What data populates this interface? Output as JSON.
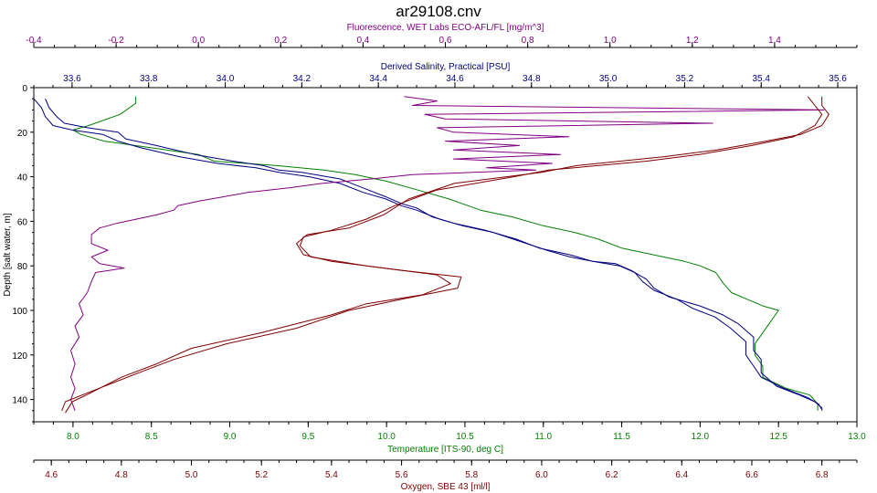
{
  "title": "ar29108.cnv",
  "chart_data": {
    "type": "line",
    "title": "ar29108.cnv",
    "grid": false,
    "legend": "none",
    "y_axis": {
      "label": "Depth [salt water, m]",
      "range": [
        0,
        150
      ],
      "ticks": [
        0,
        20,
        40,
        60,
        80,
        100,
        120,
        140
      ],
      "tick_labels": [
        "0",
        "20",
        "40",
        "60",
        "80",
        "100",
        "120",
        "140"
      ],
      "reversed": true
    },
    "axes": {
      "fluorescence": {
        "label": "Fluorescence, WET Labs ECO-AFL/FL [mg/m^3]",
        "color": "#800080",
        "position": "top",
        "range": [
          -0.4,
          1.6
        ],
        "ticks": [
          -0.4,
          -0.2,
          0.0,
          0.2,
          0.4,
          0.6,
          0.8,
          1.0,
          1.2,
          1.4
        ],
        "tick_labels": [
          "-0.4",
          "-0.2",
          "0.0",
          "0.2",
          "0.4",
          "0.6",
          "0.8",
          "1.0",
          "1.2",
          "1.4"
        ]
      },
      "salinity": {
        "label": "Derived Salinity, Practical [PSU]",
        "color": "#000080",
        "position": "top",
        "range": [
          33.5,
          35.65
        ],
        "ticks": [
          33.6,
          33.8,
          34.0,
          34.2,
          34.4,
          34.6,
          34.8,
          35.0,
          35.2,
          35.4,
          35.6
        ],
        "tick_labels": [
          "33.6",
          "33.8",
          "34.0",
          "34.2",
          "34.4",
          "34.6",
          "34.8",
          "35.0",
          "35.2",
          "35.4",
          "35.6"
        ]
      },
      "temperature": {
        "label": "Temperature [ITS-90, deg C]",
        "color": "#008000",
        "position": "bottom",
        "range": [
          7.75,
          13.0
        ],
        "ticks": [
          8.0,
          8.5,
          9.0,
          9.5,
          10.0,
          10.5,
          11.0,
          11.5,
          12.0,
          12.5,
          13.0
        ],
        "tick_labels": [
          "8.0",
          "8.5",
          "9.0",
          "9.5",
          "10.0",
          "10.5",
          "11.0",
          "11.5",
          "12.0",
          "12.5",
          "13.0"
        ]
      },
      "oxygen": {
        "label": "Oxygen, SBE 43 [ml/l]",
        "color": "#800000",
        "position": "bottom",
        "range": [
          4.55,
          6.9
        ],
        "ticks": [
          4.6,
          4.8,
          5.0,
          5.2,
          5.4,
          5.6,
          5.8,
          6.0,
          6.2,
          6.4,
          6.6,
          6.8
        ],
        "tick_labels": [
          "4.6",
          "4.8",
          "5.0",
          "5.2",
          "5.4",
          "5.6",
          "5.8",
          "6.0",
          "6.2",
          "6.4",
          "6.6",
          "6.8"
        ]
      }
    },
    "series": [
      {
        "axis": "temperature",
        "color": "#008000",
        "points": [
          [
            8.4,
            4
          ],
          [
            8.4,
            7
          ],
          [
            8.3,
            12
          ],
          [
            8.1,
            17
          ],
          [
            8.0,
            19
          ],
          [
            8.05,
            21
          ],
          [
            8.2,
            24
          ],
          [
            8.5,
            27
          ],
          [
            8.8,
            30
          ],
          [
            8.9,
            33
          ],
          [
            9.3,
            35
          ],
          [
            9.6,
            37
          ],
          [
            9.8,
            39
          ],
          [
            10.0,
            42
          ],
          [
            10.2,
            46
          ],
          [
            10.4,
            50
          ],
          [
            10.6,
            55
          ],
          [
            10.8,
            58
          ],
          [
            11.0,
            62
          ],
          [
            11.2,
            65
          ],
          [
            11.35,
            68
          ],
          [
            11.5,
            72
          ],
          [
            11.7,
            75
          ],
          [
            11.9,
            78
          ],
          [
            12.0,
            80
          ],
          [
            12.1,
            83
          ],
          [
            12.15,
            88
          ],
          [
            12.2,
            92
          ],
          [
            12.3,
            95
          ],
          [
            12.4,
            98
          ],
          [
            12.5,
            100
          ],
          [
            12.45,
            105
          ],
          [
            12.4,
            110
          ],
          [
            12.35,
            115
          ],
          [
            12.35,
            120
          ],
          [
            12.4,
            125
          ],
          [
            12.4,
            130
          ],
          [
            12.55,
            135
          ],
          [
            12.7,
            138
          ],
          [
            12.75,
            142
          ],
          [
            12.75,
            145
          ]
        ]
      },
      {
        "axis": "salinity",
        "color": "#000080",
        "points": [
          [
            33.53,
            5
          ],
          [
            33.54,
            9
          ],
          [
            33.56,
            13
          ],
          [
            33.58,
            16
          ],
          [
            33.64,
            18
          ],
          [
            33.72,
            20
          ],
          [
            33.74,
            23
          ],
          [
            33.82,
            26
          ],
          [
            33.92,
            30
          ],
          [
            34.02,
            33
          ],
          [
            34.1,
            35
          ],
          [
            34.14,
            37
          ],
          [
            34.2,
            38
          ],
          [
            34.3,
            41
          ],
          [
            34.36,
            45
          ],
          [
            34.42,
            49
          ],
          [
            34.46,
            52
          ],
          [
            34.5,
            54
          ],
          [
            34.52,
            56
          ],
          [
            34.54,
            58
          ],
          [
            34.6,
            61
          ],
          [
            34.68,
            64
          ],
          [
            34.76,
            68
          ],
          [
            34.82,
            72
          ],
          [
            34.9,
            75
          ],
          [
            34.96,
            78
          ],
          [
            35.02,
            79
          ],
          [
            35.06,
            82
          ],
          [
            35.1,
            86
          ],
          [
            35.12,
            90
          ],
          [
            35.16,
            94
          ],
          [
            35.24,
            98
          ],
          [
            35.3,
            102
          ],
          [
            35.34,
            106
          ],
          [
            35.38,
            112
          ],
          [
            35.38,
            118
          ],
          [
            35.4,
            122
          ],
          [
            35.4,
            128
          ],
          [
            35.44,
            134
          ],
          [
            35.5,
            138
          ],
          [
            35.54,
            141
          ],
          [
            35.56,
            144
          ]
        ]
      },
      {
        "axis": "salinity",
        "color": "#000080",
        "points": [
          [
            33.5,
            5
          ],
          [
            33.52,
            9
          ],
          [
            33.53,
            13
          ],
          [
            33.55,
            17
          ],
          [
            33.6,
            19
          ],
          [
            33.68,
            21
          ],
          [
            33.72,
            24
          ],
          [
            33.78,
            27
          ],
          [
            33.88,
            31
          ],
          [
            33.98,
            34
          ],
          [
            34.08,
            36
          ],
          [
            34.14,
            38
          ],
          [
            34.22,
            40
          ],
          [
            34.3,
            43
          ],
          [
            34.36,
            47
          ],
          [
            34.42,
            50
          ],
          [
            34.46,
            53
          ],
          [
            34.5,
            55
          ],
          [
            34.53,
            57
          ],
          [
            34.56,
            59
          ],
          [
            34.62,
            62
          ],
          [
            34.7,
            65
          ],
          [
            34.77,
            69
          ],
          [
            34.84,
            73
          ],
          [
            34.9,
            76
          ],
          [
            34.96,
            78
          ],
          [
            35.03,
            80
          ],
          [
            35.07,
            83
          ],
          [
            35.09,
            87
          ],
          [
            35.12,
            91
          ],
          [
            35.18,
            95
          ],
          [
            35.22,
            99
          ],
          [
            35.28,
            103
          ],
          [
            35.32,
            108
          ],
          [
            35.36,
            114
          ],
          [
            35.36,
            120
          ],
          [
            35.38,
            125
          ],
          [
            35.4,
            130
          ],
          [
            35.46,
            135
          ],
          [
            35.52,
            139
          ],
          [
            35.55,
            142
          ],
          [
            35.56,
            145
          ]
        ]
      },
      {
        "axis": "fluorescence",
        "color": "#800080",
        "points": [
          [
            0.5,
            4
          ],
          [
            0.58,
            6
          ],
          [
            0.52,
            8
          ],
          [
            1.52,
            10
          ],
          [
            0.55,
            12
          ],
          [
            0.6,
            14
          ],
          [
            1.25,
            16
          ],
          [
            0.58,
            18
          ],
          [
            0.62,
            20
          ],
          [
            0.9,
            22
          ],
          [
            0.6,
            24
          ],
          [
            0.78,
            26
          ],
          [
            0.62,
            28
          ],
          [
            0.88,
            30
          ],
          [
            0.62,
            32
          ],
          [
            0.86,
            34
          ],
          [
            0.7,
            36
          ],
          [
            0.82,
            37
          ],
          [
            0.52,
            39
          ],
          [
            0.42,
            41
          ],
          [
            0.3,
            43
          ],
          [
            0.22,
            45
          ],
          [
            0.12,
            47
          ],
          [
            0.06,
            49
          ],
          [
            0.0,
            51
          ],
          [
            -0.05,
            53
          ],
          [
            -0.06,
            55
          ],
          [
            -0.1,
            57
          ],
          [
            -0.15,
            59
          ],
          [
            -0.2,
            61
          ],
          [
            -0.24,
            63
          ],
          [
            -0.26,
            66
          ],
          [
            -0.26,
            70
          ],
          [
            -0.22,
            73
          ],
          [
            -0.26,
            76
          ],
          [
            -0.24,
            79
          ],
          [
            -0.18,
            81
          ],
          [
            -0.25,
            83
          ],
          [
            -0.26,
            87
          ],
          [
            -0.27,
            92
          ],
          [
            -0.29,
            97
          ],
          [
            -0.28,
            102
          ],
          [
            -0.3,
            107
          ],
          [
            -0.29,
            112
          ],
          [
            -0.31,
            118
          ],
          [
            -0.3,
            124
          ],
          [
            -0.31,
            130
          ],
          [
            -0.3,
            135
          ],
          [
            -0.31,
            140
          ],
          [
            -0.3,
            145
          ]
        ]
      },
      {
        "axis": "oxygen",
        "color": "#800000",
        "points": [
          [
            6.8,
            4
          ],
          [
            6.8,
            8
          ],
          [
            6.82,
            12
          ],
          [
            6.8,
            17
          ],
          [
            6.74,
            21
          ],
          [
            6.64,
            24
          ],
          [
            6.5,
            28
          ],
          [
            6.35,
            31
          ],
          [
            6.1,
            35
          ],
          [
            6.0,
            38
          ],
          [
            5.75,
            43
          ],
          [
            5.62,
            50
          ],
          [
            5.55,
            57
          ],
          [
            5.45,
            63
          ],
          [
            5.33,
            66
          ],
          [
            5.3,
            70
          ],
          [
            5.32,
            75
          ],
          [
            5.4,
            78
          ],
          [
            5.6,
            82
          ],
          [
            5.77,
            85
          ],
          [
            5.76,
            90
          ],
          [
            5.6,
            95
          ],
          [
            5.45,
            100
          ],
          [
            5.3,
            108
          ],
          [
            5.1,
            115
          ],
          [
            4.95,
            122
          ],
          [
            4.85,
            128
          ],
          [
            4.72,
            136
          ],
          [
            4.64,
            141
          ],
          [
            4.63,
            145
          ]
        ]
      },
      {
        "axis": "oxygen",
        "color": "#800000",
        "points": [
          [
            6.76,
            4
          ],
          [
            6.78,
            8
          ],
          [
            6.8,
            12
          ],
          [
            6.78,
            17
          ],
          [
            6.72,
            22
          ],
          [
            6.6,
            26
          ],
          [
            6.45,
            30
          ],
          [
            6.3,
            33
          ],
          [
            6.02,
            37
          ],
          [
            5.92,
            40
          ],
          [
            5.7,
            46
          ],
          [
            5.58,
            53
          ],
          [
            5.5,
            59
          ],
          [
            5.4,
            64
          ],
          [
            5.32,
            67
          ],
          [
            5.31,
            71
          ],
          [
            5.34,
            76
          ],
          [
            5.5,
            80
          ],
          [
            5.7,
            84
          ],
          [
            5.74,
            88
          ],
          [
            5.66,
            93
          ],
          [
            5.5,
            97
          ],
          [
            5.4,
            102
          ],
          [
            5.2,
            110
          ],
          [
            5.0,
            117
          ],
          [
            4.9,
            124
          ],
          [
            4.8,
            130
          ],
          [
            4.7,
            138
          ],
          [
            4.66,
            141
          ],
          [
            4.64,
            146
          ]
        ]
      }
    ]
  }
}
